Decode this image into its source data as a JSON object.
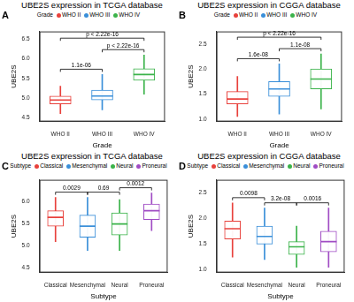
{
  "chart_data": [
    {
      "type": "box",
      "panel": "A",
      "title": "UBE2S expression in TCGA database",
      "x_label": "Grade",
      "y_label": "UBE2S",
      "legend": "top",
      "legend_title": "Grade",
      "categories": [
        "WHO II",
        "WHO III",
        "WHO IV"
      ],
      "colors": [
        "#E8413C",
        "#3A8FD9",
        "#3BB34A"
      ],
      "boxes": [
        {
          "min": 4.6,
          "q1": 4.85,
          "median": 4.95,
          "q3": 5.05,
          "max": 5.3
        },
        {
          "min": 4.7,
          "q1": 4.95,
          "median": 5.05,
          "q3": 5.2,
          "max": 5.6
        },
        {
          "min": 5.1,
          "q1": 5.45,
          "median": 5.6,
          "q3": 5.75,
          "max": 6.1
        }
      ],
      "comparisons": [
        {
          "from": "WHO II",
          "to": "WHO III",
          "label": "1.1e-06"
        },
        {
          "from": "WHO III",
          "to": "WHO IV",
          "label": "p < 2.22e-16"
        },
        {
          "from": "WHO II",
          "to": "WHO IV",
          "label": "p < 2.22e-16"
        }
      ],
      "ylim": [
        4.4,
        6.7
      ],
      "yticks": [
        4.5,
        {
          "value": 5,
          "label": "5.0"
        },
        5.5,
        {
          "value": 6,
          "label": "6.0"
        },
        6.5
      ],
      "grid": false
    },
    {
      "type": "box",
      "panel": "B",
      "title": "UBE2S expression in CGGA database",
      "x_label": "Grade",
      "y_label": "UBE2S",
      "legend": "top",
      "legend_title": "Grade",
      "categories": [
        "WHO II",
        "WHO III",
        "WHO IV"
      ],
      "colors": [
        "#E8413C",
        "#3A8FD9",
        "#3BB34A"
      ],
      "boxes": [
        {
          "min": 1.05,
          "q1": 1.3,
          "median": 1.4,
          "q3": 1.55,
          "max": 1.85
        },
        {
          "min": 1.1,
          "q1": 1.45,
          "median": 1.6,
          "q3": 1.75,
          "max": 2.1
        },
        {
          "min": 1.2,
          "q1": 1.6,
          "median": 1.8,
          "q3": 2.0,
          "max": 2.3
        }
      ],
      "comparisons": [
        {
          "from": "WHO II",
          "to": "WHO III",
          "label": "1.6e-08"
        },
        {
          "from": "WHO III",
          "to": "WHO IV",
          "label": "1.1e-08"
        },
        {
          "from": "WHO II",
          "to": "WHO IV",
          "label": "p < 2.22e-16"
        }
      ],
      "ylim": [
        0.95,
        2.75
      ],
      "yticks": [
        {
          "value": 1,
          "label": "1.0"
        },
        1.5,
        {
          "value": 2,
          "label": "2.0"
        },
        2.5
      ],
      "grid": false
    },
    {
      "type": "box",
      "panel": "C",
      "title": "UBE2S expression in TCGA database",
      "x_label": "Subtype",
      "y_label": "UBE2S",
      "legend": "top",
      "legend_title": "Subtype",
      "categories": [
        "Classical",
        "Mesenchymal",
        "Neural",
        "Proneural"
      ],
      "colors": [
        "#E8413C",
        "#3A8FD9",
        "#3BB34A",
        "#A04CC4"
      ],
      "boxes": [
        {
          "min": 5.1,
          "q1": 5.45,
          "median": 5.65,
          "q3": 5.8,
          "max": 6.1
        },
        {
          "min": 4.9,
          "q1": 5.2,
          "median": 5.45,
          "q3": 5.7,
          "max": 6.1
        },
        {
          "min": 4.9,
          "q1": 5.25,
          "median": 5.5,
          "q3": 5.75,
          "max": 6.05
        },
        {
          "min": 5.35,
          "q1": 5.6,
          "median": 5.8,
          "q3": 5.95,
          "max": 6.2
        }
      ],
      "comparisons": [
        {
          "from": "Classical",
          "to": "Mesenchymal",
          "label": "0.0029"
        },
        {
          "from": "Mesenchymal",
          "to": "Neural",
          "label": "0.69"
        },
        {
          "from": "Neural",
          "to": "Proneural",
          "label": "0.0012"
        }
      ],
      "ylim": [
        4.4,
        6.5
      ],
      "yticks": [
        4.5,
        {
          "value": 5,
          "label": "5.0"
        },
        5.5,
        {
          "value": 6,
          "label": "6.0"
        }
      ],
      "grid": false
    },
    {
      "type": "box",
      "panel": "D",
      "title": "UBE2S expression in CGGA database",
      "x_label": "Subtype",
      "y_label": "UBE2S",
      "legend": "top",
      "legend_title": "Subtype",
      "categories": [
        "Classical",
        "Mesenchymal",
        "Neural",
        "Proneural"
      ],
      "colors": [
        "#E8413C",
        "#3A8FD9",
        "#3BB34A",
        "#A04CC4"
      ],
      "boxes": [
        {
          "min": 1.25,
          "q1": 1.6,
          "median": 1.8,
          "q3": 1.95,
          "max": 2.3
        },
        {
          "min": 1.2,
          "q1": 1.5,
          "median": 1.65,
          "q3": 1.85,
          "max": 2.2
        },
        {
          "min": 1.05,
          "q1": 1.3,
          "median": 1.45,
          "q3": 1.55,
          "max": 1.85
        },
        {
          "min": 1.05,
          "q1": 1.35,
          "median": 1.55,
          "q3": 1.75,
          "max": 2.2
        }
      ],
      "comparisons": [
        {
          "from": "Classical",
          "to": "Mesenchymal",
          "label": "0.0098"
        },
        {
          "from": "Mesenchymal",
          "to": "Neural",
          "label": "3.2e-08"
        },
        {
          "from": "Neural",
          "to": "Proneural",
          "label": "0.0016"
        }
      ],
      "ylim": [
        0.95,
        2.75
      ],
      "yticks": [
        {
          "value": 1,
          "label": "1.0"
        },
        1.5,
        {
          "value": 2,
          "label": "2.0"
        },
        2.5
      ],
      "grid": false
    }
  ]
}
